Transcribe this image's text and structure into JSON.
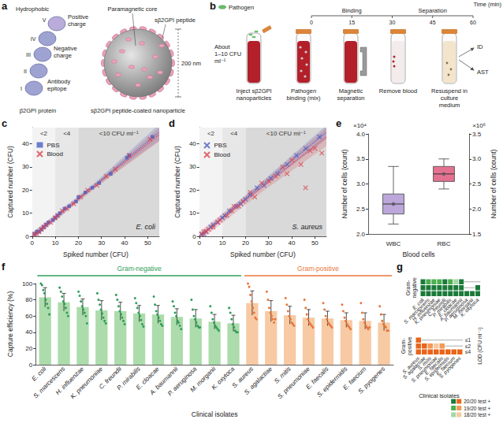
{
  "panel_a": {
    "letter": "a",
    "protein": {
      "domains": [
        "V",
        "IV",
        "III",
        "II",
        "I"
      ],
      "labels": [
        "Hydrophobic",
        "Positive charge",
        "Negative charge",
        "Antibody epitope"
      ],
      "caption": "β2GPI protein"
    },
    "nanoparticle": {
      "labels": [
        "Paramagnetic core",
        "sβ2GPI peptide"
      ],
      "size": "200 nm",
      "caption": "sβ2GPI peptide-coated nanoparticle"
    }
  },
  "panel_b": {
    "letter": "b",
    "legend": "Pathogen",
    "time_axis": {
      "title": "Time (min)",
      "ticks": [
        0,
        15,
        30,
        45,
        60
      ],
      "phases": [
        {
          "label": "Binding",
          "from": 0,
          "to": 30
        },
        {
          "label": "Separation",
          "from": 30,
          "to": 60
        }
      ]
    },
    "inoculum": "About 1–10 CFU ml⁻¹",
    "steps": [
      "Inject sβ2GPI nanoparticles",
      "Pathogen binding (mix)",
      "Magnetic separation",
      "Remove blood",
      "Resuspend in culture medium"
    ],
    "outputs": [
      "ID",
      "AST"
    ]
  },
  "chart_data": [
    {
      "panel": "c",
      "type": "scatter",
      "x_label": "Spiked number (CFU)",
      "y_label": "Captured number (CFU)",
      "annotation": "E. coli",
      "xlim": [
        0,
        55
      ],
      "xticks": [
        0,
        10,
        20,
        30,
        40,
        50
      ],
      "ylim": [
        0,
        47
      ],
      "yticks": [
        0,
        10,
        20,
        30,
        40
      ],
      "grid": false,
      "legend": "upper left",
      "regions": [
        {
          "label": "<2",
          "from": 0,
          "to": 10,
          "color": "#f3f3f3"
        },
        {
          "label": "<4",
          "from": 10,
          "to": 20,
          "color": "#e7e7e7"
        },
        {
          "label": "<10 CFU ml⁻¹",
          "from": 20,
          "to": 55,
          "color": "#d9d9d9"
        }
      ],
      "series": [
        {
          "name": "PBS",
          "color": "#4b5fc4",
          "marker": "square",
          "x": [
            1,
            2,
            3,
            4,
            5,
            6,
            7,
            9,
            10,
            11,
            12,
            14,
            16,
            19,
            20,
            23,
            26,
            29,
            34,
            41,
            42,
            52
          ],
          "values": [
            1,
            2,
            2,
            3,
            4,
            5,
            6,
            7,
            8,
            9,
            10,
            12,
            13,
            15,
            17,
            19,
            21,
            23,
            27,
            34,
            35,
            43
          ],
          "fit": {
            "x": [
              0,
              27.5,
              55
            ],
            "values": [
              0,
              22.5,
              45
            ],
            "lower": [
              -1.5,
              21.5,
              41.5
            ],
            "upper": [
              1.5,
              23.5,
              48.5
            ]
          }
        },
        {
          "name": "Blood",
          "color": "#d9434f",
          "marker": "cross",
          "x": [
            1,
            2,
            3,
            4,
            5,
            6,
            8,
            10,
            11,
            13,
            15,
            18,
            21,
            24,
            28,
            32,
            36,
            42,
            51
          ],
          "values": [
            1,
            1,
            2,
            3,
            4,
            5,
            6,
            8,
            9,
            11,
            12,
            14,
            17,
            20,
            22,
            26,
            29,
            35,
            42
          ],
          "fit": {
            "x": [
              0,
              27.5,
              55
            ],
            "values": [
              0,
              22,
              44
            ],
            "lower": [
              -1.5,
              21,
              41
            ],
            "upper": [
              1.5,
              23,
              47
            ]
          }
        }
      ]
    },
    {
      "panel": "d",
      "type": "scatter",
      "x_label": "Spiked number (CFU)",
      "y_label": "Captured number (CFU)",
      "annotation": "S. aureus",
      "xlim": [
        0,
        55
      ],
      "xticks": [
        0,
        10,
        20,
        30,
        40,
        50
      ],
      "ylim": [
        0,
        47
      ],
      "yticks": [
        0,
        10,
        20,
        30,
        40
      ],
      "grid": false,
      "legend": "upper left",
      "regions": [
        {
          "label": "<2",
          "from": 0,
          "to": 10,
          "color": "#f3f3f3"
        },
        {
          "label": "<4",
          "from": 10,
          "to": 20,
          "color": "#e7e7e7"
        },
        {
          "label": "<10 CFU ml⁻¹",
          "from": 20,
          "to": 55,
          "color": "#d9d9d9"
        }
      ],
      "series": [
        {
          "name": "PBS",
          "color": "#4b5fc4",
          "marker": "cross",
          "x": [
            1,
            2,
            3,
            5,
            6,
            8,
            10,
            11,
            13,
            16,
            18,
            20,
            22,
            25,
            28,
            31,
            34,
            38,
            42,
            46,
            52
          ],
          "values": [
            1,
            1,
            2,
            4,
            5,
            6,
            8,
            9,
            11,
            13,
            14,
            16,
            18,
            21,
            22,
            25,
            27,
            31,
            35,
            38,
            43
          ],
          "fit": {
            "x": [
              0,
              27.5,
              55
            ],
            "values": [
              0,
              22.5,
              45
            ],
            "lower": [
              -1,
              21,
              42
            ],
            "upper": [
              1,
              24,
              48
            ]
          }
        },
        {
          "name": "Blood",
          "color": "#d9434f",
          "marker": "cross",
          "x": [
            1,
            2,
            3,
            4,
            6,
            8,
            9,
            12,
            14,
            15,
            17,
            19,
            22,
            24,
            27,
            30,
            33,
            36,
            38,
            40,
            44,
            46,
            48,
            50,
            53
          ],
          "values": [
            1,
            2,
            2,
            3,
            4,
            6,
            7,
            9,
            11,
            13,
            13,
            15,
            19,
            17,
            23,
            24,
            26,
            30,
            27,
            33,
            31,
            21,
            37,
            38,
            36
          ],
          "fit": {
            "x": [
              0,
              27.5,
              55
            ],
            "values": [
              0,
              21.5,
              43
            ],
            "lower": [
              -2,
              19.5,
              39
            ],
            "upper": [
              2,
              23.5,
              47
            ]
          }
        }
      ]
    },
    {
      "panel": "e",
      "type": "boxplot",
      "x_label": "Blood cells",
      "categories": [
        "WBC",
        "RBC"
      ],
      "y_label": "Number of cells (count)",
      "y2_label": "Number of cells (count)",
      "y_multiplier": "×10⁴",
      "y2_multiplier": "×10⁶",
      "grid": false,
      "ylim": [
        2,
        4
      ],
      "yticks": [
        {
          "value": 2,
          "label": "2.0"
        },
        2.5,
        {
          "value": 3,
          "label": "3.0"
        },
        3.5,
        {
          "value": 4,
          "label": "4.0"
        }
      ],
      "y2lim": [
        1.5,
        3.5
      ],
      "y2ticks": [
        1.5,
        {
          "value": 2,
          "label": "2.0"
        },
        2.5,
        {
          "value": 3,
          "label": "3.0"
        },
        3.5
      ],
      "boxes": [
        {
          "category": "WBC",
          "axis": "y",
          "color": "#bba7da",
          "min": 2.2,
          "q1": 2.4,
          "median": 2.6,
          "q3": 2.8,
          "max": 3.35,
          "mean": 2.6
        },
        {
          "category": "RBC",
          "axis": "y2",
          "color": "#e3718f",
          "min": 2.4,
          "q1": 2.55,
          "median": 2.7,
          "q3": 2.85,
          "max": 3.0,
          "mean": 2.7
        }
      ]
    },
    {
      "panel": "f",
      "type": "bar",
      "x_label": "Clinical isolates",
      "y_label": "Capture efficiency (%)",
      "ylim": [
        0,
        100
      ],
      "yticks": [
        0,
        20,
        40,
        60,
        80,
        100
      ],
      "grid": false,
      "categories": [
        "E. coli",
        "S. marcescens",
        "H. influenzae",
        "K. pneumoniae",
        "C. freundii",
        "P. mirabilis",
        "E. cloacae",
        "A. baumannii",
        "P. aeruginosa",
        "M. morganii",
        "K. oxytoca",
        "S. aureus",
        "S. agalactiae",
        "S. mitis",
        "S. pneumoniae",
        "E. faecalis",
        "S. epidermidis",
        "E. faecium",
        "S. pyogenes"
      ],
      "category_groups": [
        "Gram-negative",
        "Gram-negative",
        "Gram-negative",
        "Gram-negative",
        "Gram-negative",
        "Gram-negative",
        "Gram-negative",
        "Gram-negative",
        "Gram-negative",
        "Gram-negative",
        "Gram-negative",
        "Gram-positive",
        "Gram-positive",
        "Gram-positive",
        "Gram-positive",
        "Gram-positive",
        "Gram-positive",
        "Gram-positive",
        "Gram-positive"
      ],
      "group_styles": [
        {
          "name": "Gram-negative",
          "color": "#acdcab",
          "point_color": "#2f9e5a"
        },
        {
          "name": "Gram-positive",
          "color": "#f7caa4",
          "point_color": "#e8763a"
        }
      ],
      "values": [
        83,
        77,
        71,
        67,
        66,
        63,
        62,
        59,
        57,
        53,
        51,
        76,
        66,
        61,
        58,
        57,
        55,
        54,
        52
      ],
      "errors": [
        12,
        11,
        10,
        12,
        11,
        10,
        11,
        10,
        11,
        9,
        10,
        15,
        13,
        11,
        10,
        9,
        9,
        10,
        10
      ],
      "points": [
        [
          100,
          98,
          92,
          88,
          80,
          75,
          70,
          62
        ],
        [
          95,
          90,
          84,
          78,
          75,
          70,
          64,
          60
        ],
        [
          90,
          85,
          78,
          72,
          68,
          64,
          60,
          51
        ],
        [
          88,
          80,
          74,
          68,
          63,
          58,
          54,
          51
        ],
        [
          86,
          80,
          72,
          66,
          62,
          58,
          54,
          50
        ],
        [
          82,
          76,
          70,
          64,
          60,
          55,
          50,
          47
        ],
        [
          84,
          74,
          66,
          62,
          58,
          54,
          50,
          48
        ],
        [
          78,
          72,
          64,
          60,
          54,
          52,
          48,
          44
        ],
        [
          80,
          68,
          60,
          56,
          52,
          48,
          46,
          46
        ],
        [
          72,
          64,
          56,
          52,
          48,
          46,
          44,
          42
        ],
        [
          70,
          64,
          56,
          50,
          46,
          42,
          40,
          40
        ],
        [
          100,
          96,
          86,
          78,
          70,
          64,
          58,
          56
        ],
        [
          90,
          80,
          70,
          64,
          60,
          56,
          52,
          56
        ],
        [
          82,
          74,
          66,
          60,
          56,
          52,
          50,
          48
        ],
        [
          80,
          70,
          62,
          56,
          52,
          50,
          48,
          46
        ],
        [
          76,
          68,
          60,
          56,
          52,
          50,
          48,
          46
        ],
        [
          74,
          66,
          58,
          54,
          50,
          48,
          46,
          44
        ],
        [
          76,
          64,
          56,
          52,
          48,
          46,
          44,
          46
        ],
        [
          72,
          62,
          54,
          50,
          48,
          46,
          42,
          42
        ]
      ]
    },
    {
      "panel": "g",
      "type": "heatmap",
      "x_label": "Clinical isolates",
      "y_label": "LOD (CFU ml⁻¹)",
      "rows": [
        "≤1",
        "≤2",
        "≤4"
      ],
      "legend": "lower right",
      "legend_items": [
        {
          "value": 20,
          "label": "20/20 test +"
        },
        {
          "value": 19,
          "label": "19/20 test +"
        },
        {
          "value": 18,
          "label": "18/20 test +"
        }
      ],
      "groups": [
        {
          "name": "Gram-negative",
          "categories": [
            "E. coli",
            "S. marcescens",
            "H. influenzae",
            "K. pneumoniae",
            "C. freundii",
            "P. mirabilis",
            "E. cloacae",
            "A. baumannii",
            "P. aeruginosa",
            "M. morganii",
            "K. oxytoca"
          ],
          "cells": [
            [
              20,
              19,
              19,
              19,
              20,
              19,
              18,
              20,
              null,
              null,
              null
            ],
            [
              20,
              20,
              20,
              20,
              20,
              20,
              20,
              20,
              null,
              null,
              20
            ],
            [
              20,
              20,
              20,
              20,
              20,
              20,
              20,
              20,
              20,
              20,
              20
            ]
          ],
          "color_scale": [
            {
              "value": 20,
              "color": "#1b7a3a"
            },
            {
              "value": 19,
              "color": "#4caf50"
            },
            {
              "value": 18,
              "color": "#a5d6a7"
            }
          ]
        },
        {
          "name": "Gram-positive",
          "categories": [
            "S. aureus",
            "S. agalactiae",
            "S. mitis",
            "S. pneumoniae",
            "E. faecalis",
            "S. epidermidis",
            "E. faecium",
            "S. pyogenes"
          ],
          "cells": [
            [
              20,
              null,
              null,
              null,
              null,
              null,
              null,
              null
            ],
            [
              20,
              20,
              19,
              18,
              19,
              null,
              null,
              null
            ],
            [
              20,
              20,
              20,
              20,
              20,
              20,
              20,
              20
            ]
          ],
          "color_scale": [
            {
              "value": 20,
              "color": "#e8651a"
            },
            {
              "value": 19,
              "color": "#f19a55"
            },
            {
              "value": 18,
              "color": "#f6c9a0"
            }
          ]
        }
      ]
    }
  ]
}
